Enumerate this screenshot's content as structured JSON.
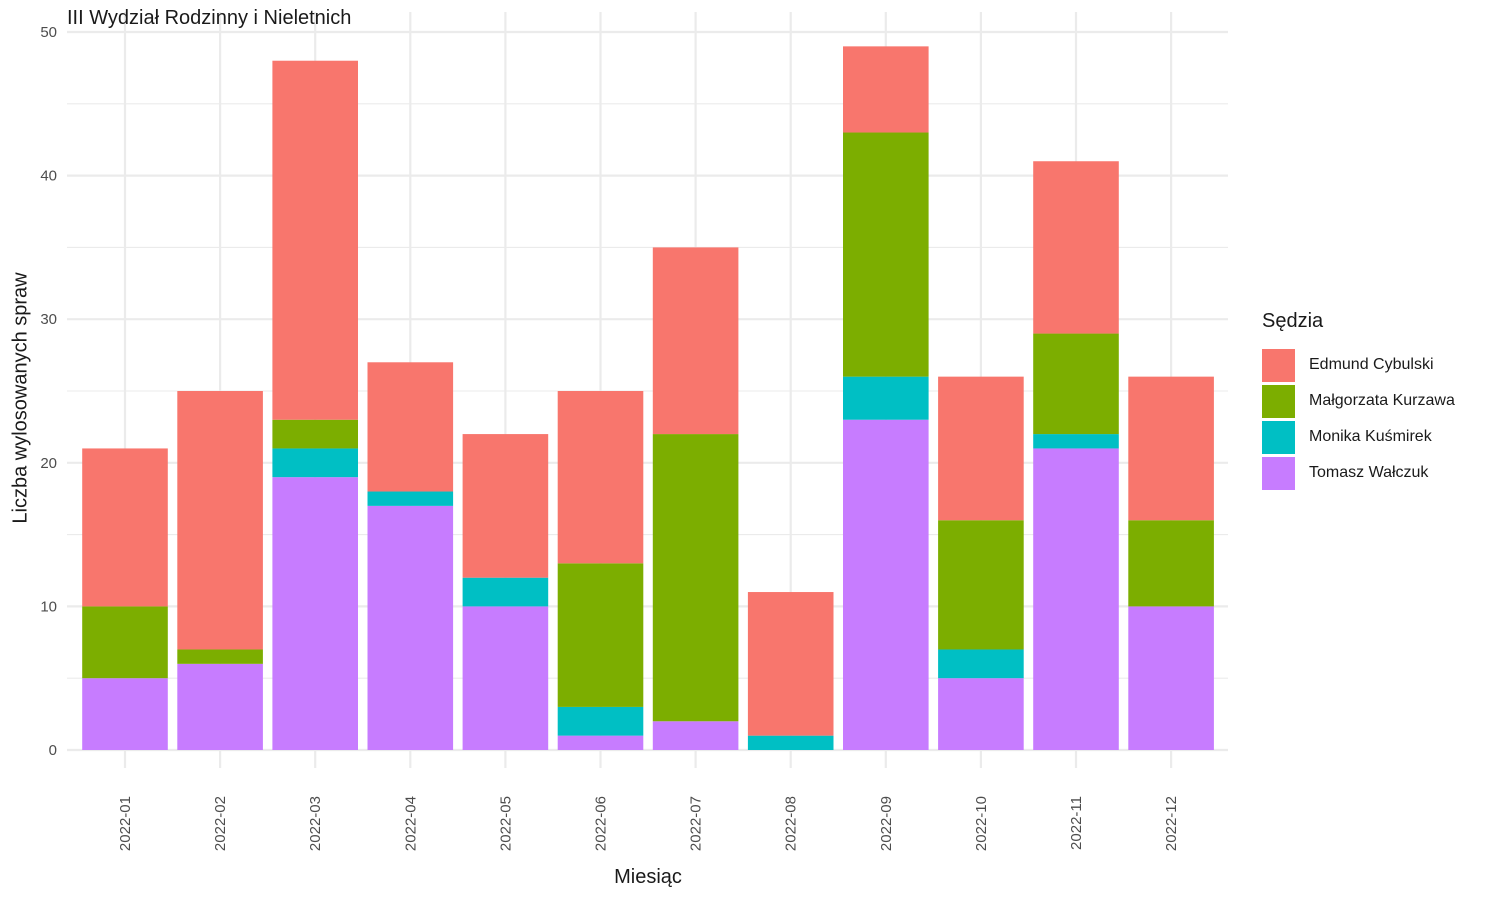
{
  "chart_data": {
    "type": "bar",
    "stacked": true,
    "title": "III Wydział Rodzinny i Nieletnich",
    "xlabel": "Miesiąc",
    "ylabel": "Liczba wylosowanych spraw",
    "ylim": [
      0,
      50
    ],
    "yticks": [
      "0",
      "10",
      "20",
      "30",
      "40",
      "50"
    ],
    "grid": true,
    "legend_position": "right",
    "legend_title": "Sędzia",
    "categories": [
      "2022-01",
      "2022-02",
      "2022-03",
      "2022-04",
      "2022-05",
      "2022-06",
      "2022-07",
      "2022-08",
      "2022-09",
      "2022-10",
      "2022-11",
      "2022-12"
    ],
    "series": [
      {
        "name": "Tomasz Wałczuk",
        "color": "#C77CFF",
        "values": [
          5,
          6,
          19,
          17,
          10,
          1,
          2,
          0,
          23,
          5,
          21,
          10
        ]
      },
      {
        "name": "Monika Kuśmirek",
        "color": "#00BFC4",
        "values": [
          0,
          0,
          2,
          1,
          2,
          2,
          0,
          1,
          3,
          2,
          1,
          0
        ]
      },
      {
        "name": "Małgorzata Kurzawa",
        "color": "#7CAE00",
        "values": [
          5,
          1,
          2,
          0,
          0,
          10,
          20,
          0,
          17,
          9,
          7,
          6
        ]
      },
      {
        "name": "Edmund Cybulski",
        "color": "#F8766D",
        "values": [
          11,
          18,
          25,
          9,
          10,
          12,
          13,
          10,
          6,
          10,
          12,
          10
        ]
      }
    ],
    "legend_order": [
      "Edmund Cybulski",
      "Małgorzata Kurzawa",
      "Monika Kuśmirek",
      "Tomasz Wałczuk"
    ]
  }
}
